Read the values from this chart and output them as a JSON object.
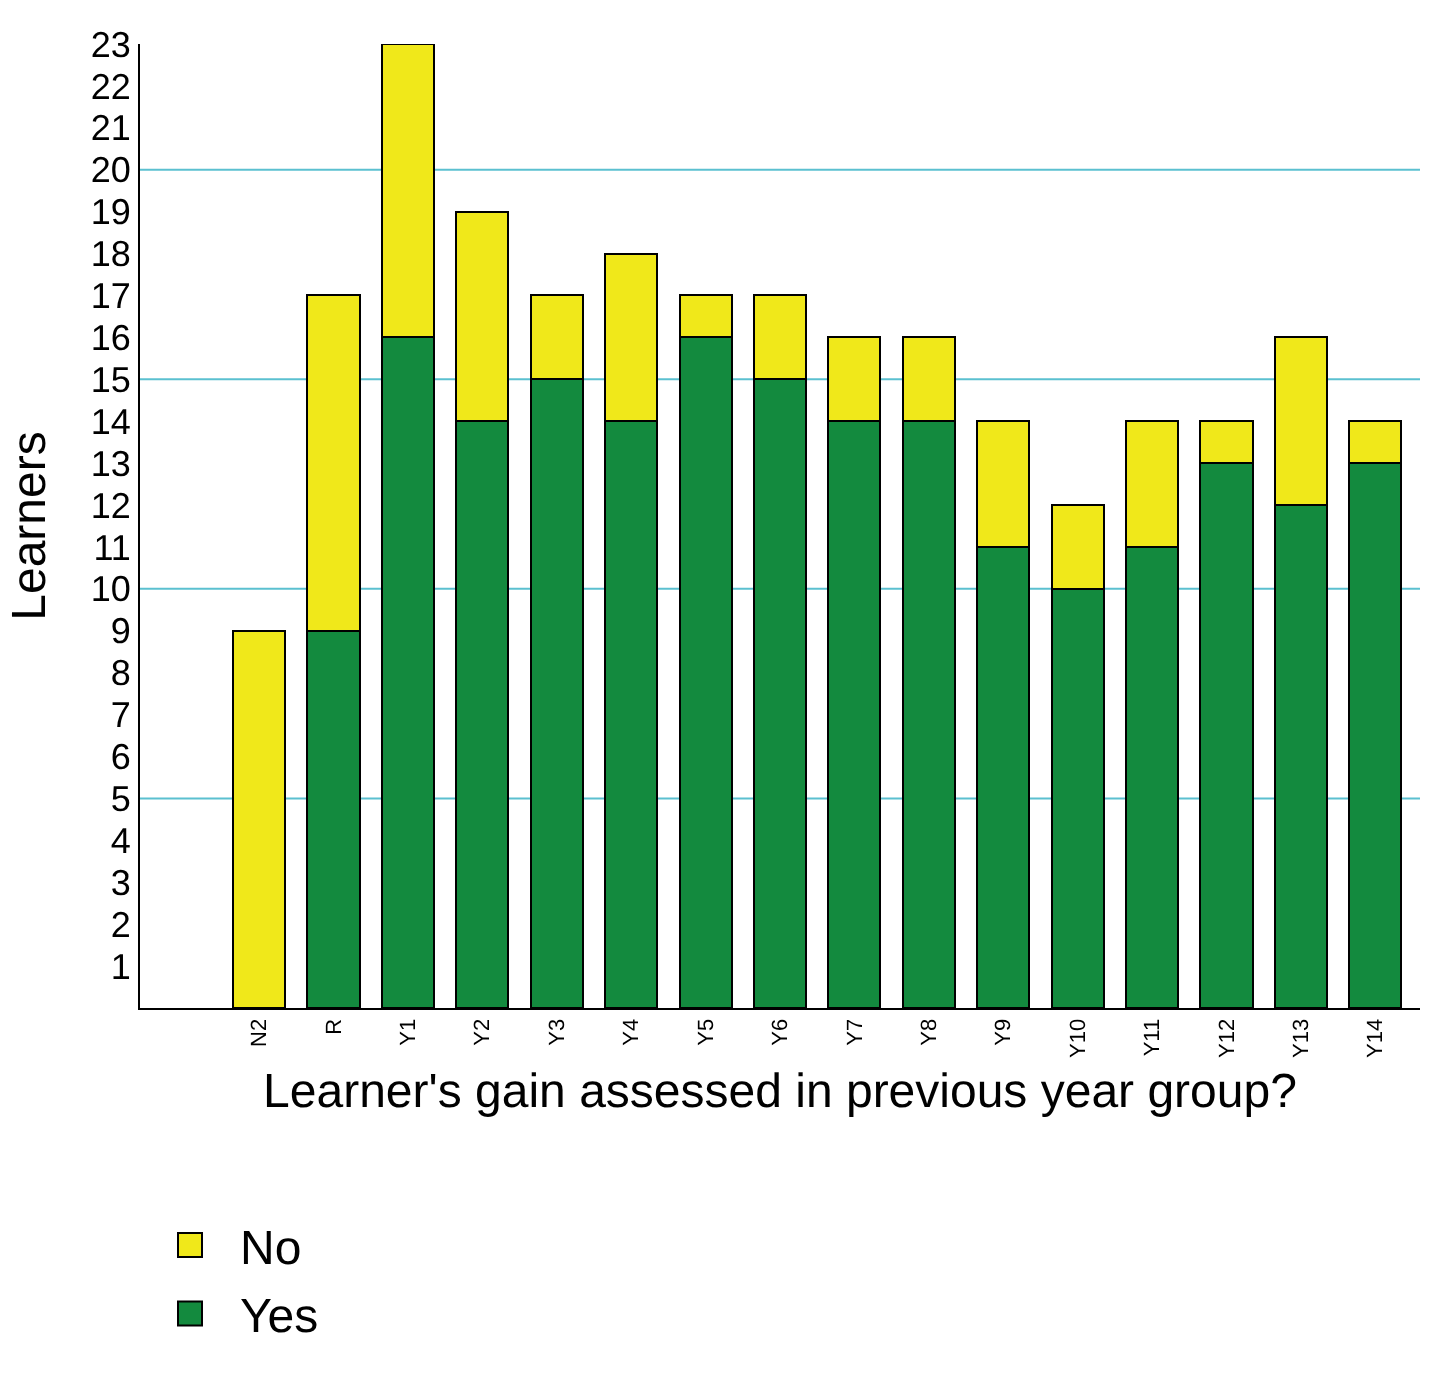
{
  "chart_data": {
    "type": "bar",
    "stacked": true,
    "xlabel": "Learner's gain assessed in previous year group?",
    "ylabel": "Learners",
    "categories": [
      "N2",
      "R",
      "Y1",
      "Y2",
      "Y3",
      "Y4",
      "Y5",
      "Y6",
      "Y7",
      "Y8",
      "Y9",
      "Y10",
      "Y11",
      "Y12",
      "Y13",
      "Y14"
    ],
    "series": [
      {
        "name": "Yes",
        "color": "#138a3e",
        "values": [
          0,
          9,
          16,
          14,
          15,
          14,
          16,
          15,
          14,
          14,
          11,
          10,
          11,
          13,
          12,
          13
        ]
      },
      {
        "name": "No",
        "color": "#f0e81a",
        "values": [
          9,
          8,
          7,
          5,
          2,
          4,
          1,
          2,
          2,
          2,
          3,
          2,
          3,
          1,
          4,
          1
        ]
      }
    ],
    "ylim": [
      0,
      23
    ],
    "yticks": [
      1,
      2,
      3,
      4,
      5,
      6,
      7,
      8,
      9,
      10,
      11,
      12,
      13,
      14,
      15,
      16,
      17,
      18,
      19,
      20,
      21,
      22,
      23
    ],
    "ref_lines": [
      {
        "axis": "y",
        "value": 5,
        "color": "#5bc0d0"
      },
      {
        "axis": "y",
        "value": 10,
        "color": "#5bc0d0"
      },
      {
        "axis": "y",
        "value": 15,
        "color": "#5bc0d0"
      },
      {
        "axis": "y",
        "value": 20,
        "color": "#5bc0d0"
      }
    ],
    "grid": false,
    "legend": "bottom"
  }
}
